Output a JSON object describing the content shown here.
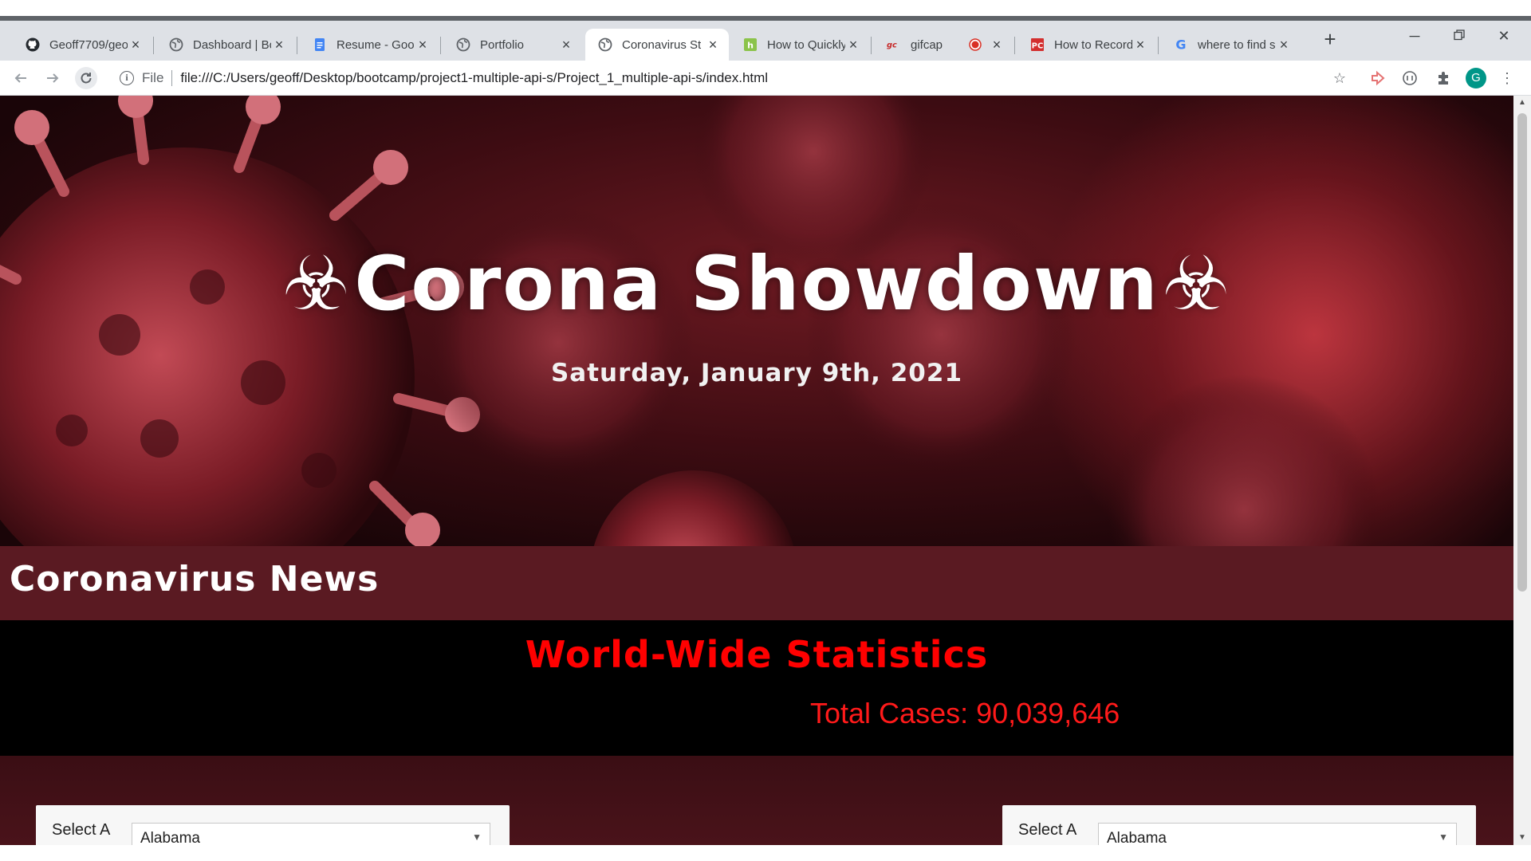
{
  "browser": {
    "tabs": [
      {
        "title": "Geoff7709/geo",
        "icon": "github-icon"
      },
      {
        "title": "Dashboard | Bo",
        "icon": "globe-icon"
      },
      {
        "title": "Resume - Goo",
        "icon": "docs-icon"
      },
      {
        "title": "Portfolio",
        "icon": "globe-icon"
      },
      {
        "title": "Coronavirus St",
        "icon": "globe-icon"
      },
      {
        "title": "How to Quickly",
        "icon": "hub-icon"
      },
      {
        "title": "gifcap",
        "icon": "gifcap-icon"
      },
      {
        "title": "How to Record",
        "icon": "pc-icon"
      },
      {
        "title": "where to find s",
        "icon": "google-icon"
      }
    ],
    "address": {
      "scheme_label": "File",
      "url": "file:///C:/Users/geoff/Desktop/bootcamp/project1-multiple-api-s/Project_1_multiple-api-s/index.html"
    },
    "profile_initial": "G",
    "new_tab_glyph": "+",
    "accent": "#009688"
  },
  "page": {
    "hero": {
      "title": "Corona Showdown",
      "biohazard": "☣",
      "date": "Saturday, January 9th, 2021"
    },
    "news": {
      "heading": "Coronavirus News"
    },
    "stats": {
      "heading": "World-Wide Statistics",
      "total_cases": "Total Cases: 90,039,646",
      "heading_color": "#ff0000"
    },
    "selectors": [
      {
        "label": "Select A",
        "value": "Alabama"
      },
      {
        "label": "Select A",
        "value": "Alabama"
      }
    ]
  }
}
